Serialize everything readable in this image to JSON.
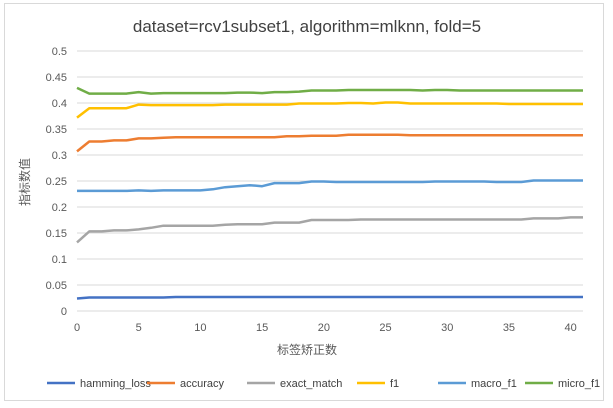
{
  "chart_data": {
    "type": "line",
    "title": "dataset=rcv1subset1, algorithm=mlknn, fold=5",
    "xlabel": "标签矫正数",
    "ylabel": "指标数值",
    "xlim": [
      0,
      41
    ],
    "ylim": [
      0,
      0.5
    ],
    "x_ticks": [
      "0",
      "5",
      "10",
      "15",
      "20",
      "25",
      "30",
      "35",
      "40"
    ],
    "y_ticks": [
      "0",
      "0.05",
      "0.1",
      "0.15",
      "0.2",
      "0.25",
      "0.3",
      "0.35",
      "0.4",
      "0.45",
      "0.5"
    ],
    "grid": true,
    "legend_position": "bottom",
    "x": [
      0,
      1,
      2,
      3,
      4,
      5,
      6,
      7,
      8,
      9,
      10,
      11,
      12,
      13,
      14,
      15,
      16,
      17,
      18,
      19,
      20,
      21,
      22,
      23,
      24,
      25,
      26,
      27,
      28,
      29,
      30,
      31,
      32,
      33,
      34,
      35,
      36,
      37,
      38,
      39,
      40,
      41
    ],
    "series": [
      {
        "name": "hamming_loss",
        "color": "#4472c4",
        "values": [
          0.024,
          0.026,
          0.026,
          0.026,
          0.026,
          0.026,
          0.026,
          0.026,
          0.027,
          0.027,
          0.027,
          0.027,
          0.027,
          0.027,
          0.027,
          0.027,
          0.027,
          0.027,
          0.027,
          0.027,
          0.027,
          0.027,
          0.027,
          0.027,
          0.027,
          0.027,
          0.027,
          0.027,
          0.027,
          0.027,
          0.027,
          0.027,
          0.027,
          0.027,
          0.027,
          0.027,
          0.027,
          0.027,
          0.027,
          0.027,
          0.027,
          0.027
        ]
      },
      {
        "name": "accuracy",
        "color": "#ed7d31",
        "values": [
          0.307,
          0.326,
          0.326,
          0.328,
          0.328,
          0.332,
          0.332,
          0.333,
          0.334,
          0.334,
          0.334,
          0.334,
          0.334,
          0.334,
          0.334,
          0.334,
          0.334,
          0.336,
          0.336,
          0.337,
          0.337,
          0.337,
          0.339,
          0.339,
          0.339,
          0.339,
          0.339,
          0.338,
          0.338,
          0.338,
          0.338,
          0.338,
          0.338,
          0.338,
          0.338,
          0.338,
          0.338,
          0.338,
          0.338,
          0.338,
          0.338,
          0.338
        ]
      },
      {
        "name": "exact_match",
        "color": "#a5a5a5",
        "values": [
          0.132,
          0.153,
          0.153,
          0.155,
          0.155,
          0.157,
          0.16,
          0.164,
          0.164,
          0.164,
          0.164,
          0.164,
          0.166,
          0.167,
          0.167,
          0.167,
          0.17,
          0.17,
          0.17,
          0.175,
          0.175,
          0.175,
          0.175,
          0.176,
          0.176,
          0.176,
          0.176,
          0.176,
          0.176,
          0.176,
          0.176,
          0.176,
          0.176,
          0.176,
          0.176,
          0.176,
          0.176,
          0.178,
          0.178,
          0.178,
          0.18,
          0.18
        ]
      },
      {
        "name": "f1",
        "color": "#ffc000",
        "values": [
          0.372,
          0.39,
          0.39,
          0.39,
          0.39,
          0.397,
          0.396,
          0.396,
          0.396,
          0.396,
          0.396,
          0.396,
          0.397,
          0.397,
          0.397,
          0.397,
          0.397,
          0.397,
          0.399,
          0.399,
          0.399,
          0.399,
          0.4,
          0.4,
          0.399,
          0.401,
          0.401,
          0.399,
          0.399,
          0.399,
          0.399,
          0.399,
          0.399,
          0.399,
          0.399,
          0.398,
          0.398,
          0.398,
          0.398,
          0.398,
          0.398,
          0.398
        ]
      },
      {
        "name": "macro_f1",
        "color": "#5b9bd5",
        "values": [
          0.231,
          0.231,
          0.231,
          0.231,
          0.231,
          0.232,
          0.231,
          0.232,
          0.232,
          0.232,
          0.232,
          0.234,
          0.238,
          0.24,
          0.242,
          0.24,
          0.246,
          0.246,
          0.246,
          0.249,
          0.249,
          0.248,
          0.248,
          0.248,
          0.248,
          0.248,
          0.248,
          0.248,
          0.248,
          0.249,
          0.249,
          0.249,
          0.249,
          0.249,
          0.248,
          0.248,
          0.248,
          0.251,
          0.251,
          0.251,
          0.251,
          0.251
        ]
      },
      {
        "name": "micro_f1",
        "color": "#70ad47",
        "values": [
          0.429,
          0.418,
          0.418,
          0.418,
          0.418,
          0.421,
          0.418,
          0.419,
          0.419,
          0.419,
          0.419,
          0.419,
          0.419,
          0.42,
          0.42,
          0.419,
          0.421,
          0.421,
          0.422,
          0.424,
          0.424,
          0.424,
          0.425,
          0.425,
          0.425,
          0.425,
          0.425,
          0.425,
          0.424,
          0.425,
          0.425,
          0.424,
          0.424,
          0.424,
          0.424,
          0.424,
          0.424,
          0.424,
          0.424,
          0.424,
          0.424,
          0.424
        ]
      }
    ]
  }
}
